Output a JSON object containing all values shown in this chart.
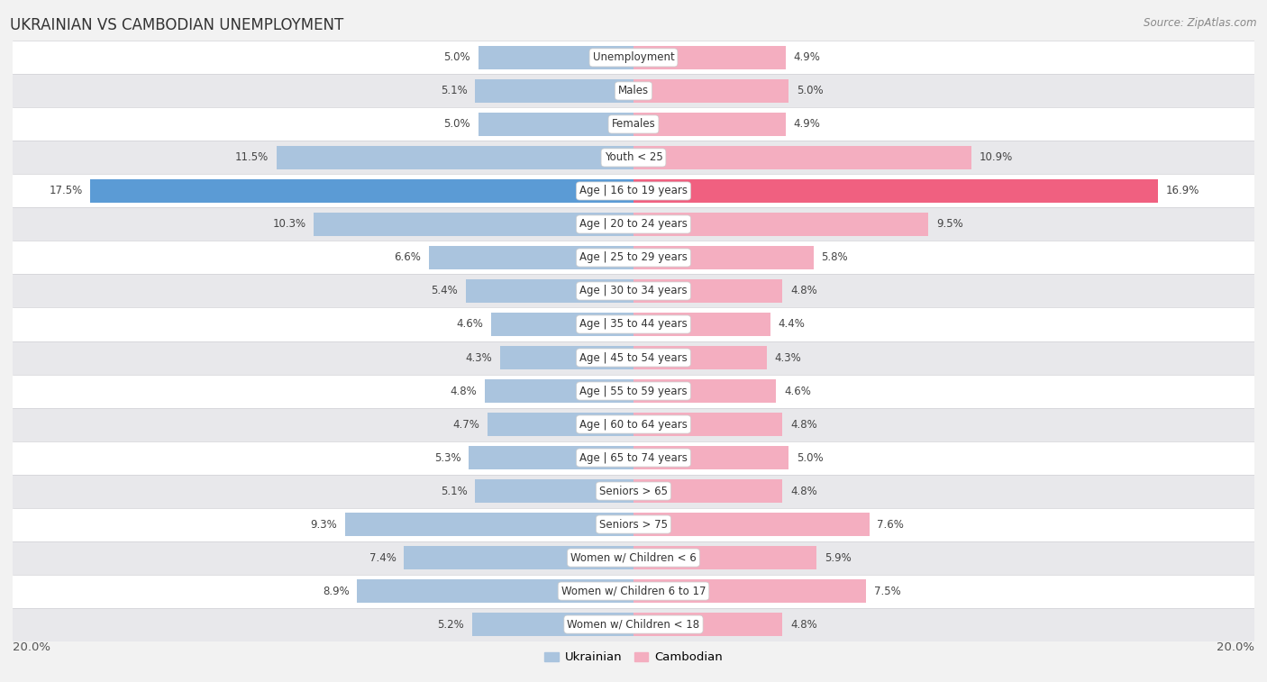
{
  "title": "UKRAINIAN VS CAMBODIAN UNEMPLOYMENT",
  "source": "Source: ZipAtlas.com",
  "categories": [
    "Unemployment",
    "Males",
    "Females",
    "Youth < 25",
    "Age | 16 to 19 years",
    "Age | 20 to 24 years",
    "Age | 25 to 29 years",
    "Age | 30 to 34 years",
    "Age | 35 to 44 years",
    "Age | 45 to 54 years",
    "Age | 55 to 59 years",
    "Age | 60 to 64 years",
    "Age | 65 to 74 years",
    "Seniors > 65",
    "Seniors > 75",
    "Women w/ Children < 6",
    "Women w/ Children 6 to 17",
    "Women w/ Children < 18"
  ],
  "ukrainian": [
    5.0,
    5.1,
    5.0,
    11.5,
    17.5,
    10.3,
    6.6,
    5.4,
    4.6,
    4.3,
    4.8,
    4.7,
    5.3,
    5.1,
    9.3,
    7.4,
    8.9,
    5.2
  ],
  "cambodian": [
    4.9,
    5.0,
    4.9,
    10.9,
    16.9,
    9.5,
    5.8,
    4.8,
    4.4,
    4.3,
    4.6,
    4.8,
    5.0,
    4.8,
    7.6,
    5.9,
    7.5,
    4.8
  ],
  "ukrainian_color": "#aac4de",
  "cambodian_color": "#f4aec0",
  "ukrainian_highlight": "#5b9bd5",
  "cambodian_highlight": "#f06080",
  "bar_height": 0.72,
  "background_color": "#f2f2f2",
  "row_color_light": "#ffffff",
  "row_color_dark": "#e8e8eb",
  "xlim": 20.0,
  "axis_label_left": "20.0%",
  "axis_label_right": "20.0%",
  "label_fontsize": 9.5,
  "title_fontsize": 12,
  "source_fontsize": 8.5,
  "value_fontsize": 8.5,
  "category_fontsize": 8.5,
  "highlight_row": 4
}
